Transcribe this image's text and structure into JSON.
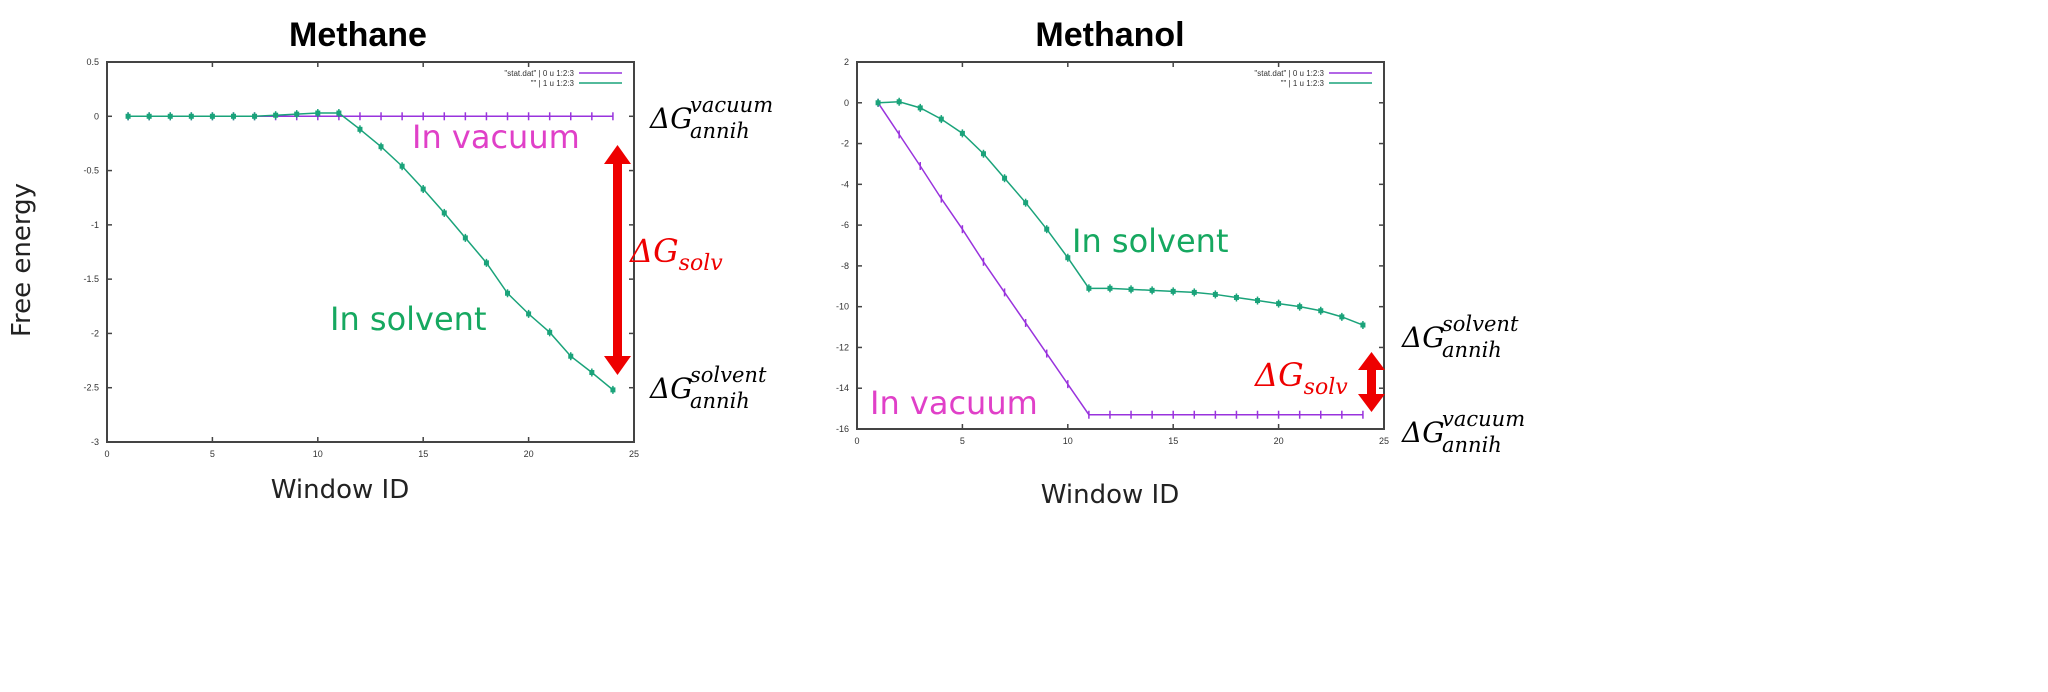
{
  "ylabel": "Free energy",
  "chart_data": [
    {
      "type": "line",
      "title": "Methane",
      "xlabel": "Window ID",
      "ylabel": "Free energy",
      "xlim": [
        0,
        25
      ],
      "ylim": [
        -3,
        0.5
      ],
      "xticks": [
        "0",
        "5",
        "10",
        "15",
        "20",
        "25"
      ],
      "yticks": [
        "0.5",
        "0",
        "-0.5",
        "-1",
        "-1.5",
        "-2",
        "-2.5",
        "-3"
      ],
      "x": [
        1,
        2,
        3,
        4,
        5,
        6,
        7,
        8,
        9,
        10,
        11,
        12,
        13,
        14,
        15,
        16,
        17,
        18,
        19,
        20,
        21,
        22,
        23,
        24
      ],
      "legend": [
        "\"stat.dat\" | 0 u 1:2:3",
        "\"\" | 1 u 1:2:3"
      ],
      "series": [
        {
          "name": "In vacuum",
          "color": "#9933dd",
          "values": [
            0,
            0,
            0,
            0,
            0,
            0,
            0,
            0,
            0,
            0,
            0,
            0,
            0,
            0,
            0,
            0,
            0,
            0,
            0,
            0,
            0,
            0,
            0,
            0
          ]
        },
        {
          "name": "In solvent",
          "color": "#1aa37a",
          "values": [
            0,
            0,
            0,
            0,
            0,
            0,
            0,
            0.01,
            0.02,
            0.03,
            0.03,
            -0.12,
            -0.28,
            -0.46,
            -0.67,
            -0.89,
            -1.12,
            -1.35,
            -1.63,
            -1.82,
            -1.99,
            -2.21,
            -2.36,
            -2.52
          ]
        }
      ],
      "annotations": {
        "vacuum_label": "In vacuum",
        "solvent_label": "In solvent",
        "dg_solv": {
          "base": "ΔG",
          "sub": "solv"
        },
        "dg_vacuum": {
          "base": "ΔG",
          "sup": "vacuum",
          "sub": "annih"
        },
        "dg_solvent": {
          "base": "ΔG",
          "sup": "solvent",
          "sub": "annih"
        }
      }
    },
    {
      "type": "line",
      "title": "Methanol",
      "xlabel": "Window ID",
      "ylabel": "Free energy",
      "xlim": [
        0,
        25
      ],
      "ylim": [
        -16,
        2
      ],
      "xticks": [
        "0",
        "5",
        "10",
        "15",
        "20",
        "25"
      ],
      "yticks": [
        "2",
        "0",
        "-2",
        "-4",
        "-6",
        "-8",
        "-10",
        "-12",
        "-14",
        "-16"
      ],
      "x": [
        1,
        2,
        3,
        4,
        5,
        6,
        7,
        8,
        9,
        10,
        11,
        12,
        13,
        14,
        15,
        16,
        17,
        18,
        19,
        20,
        21,
        22,
        23,
        24
      ],
      "legend": [
        "\"stat.dat\" | 0 u 1:2:3",
        "\"\" | 1 u 1:2:3"
      ],
      "series": [
        {
          "name": "In vacuum",
          "color": "#9933dd",
          "values": [
            0,
            -1.55,
            -3.1,
            -4.7,
            -6.2,
            -7.8,
            -9.3,
            -10.8,
            -12.3,
            -13.8,
            -15.3,
            -15.3,
            -15.3,
            -15.3,
            -15.3,
            -15.3,
            -15.3,
            -15.3,
            -15.3,
            -15.3,
            -15.3,
            -15.3,
            -15.3,
            -15.3
          ]
        },
        {
          "name": "In solvent",
          "color": "#1aa37a",
          "values": [
            0,
            0.05,
            -0.25,
            -0.8,
            -1.5,
            -2.5,
            -3.7,
            -4.9,
            -6.2,
            -7.6,
            -9.1,
            -9.1,
            -9.15,
            -9.2,
            -9.25,
            -9.3,
            -9.4,
            -9.55,
            -9.7,
            -9.85,
            -10.0,
            -10.2,
            -10.5,
            -10.9
          ]
        }
      ],
      "annotations": {
        "vacuum_label": "In vacuum",
        "solvent_label": "In solvent",
        "dg_solv": {
          "base": "ΔG",
          "sub": "solv"
        },
        "dg_vacuum": {
          "base": "ΔG",
          "sup": "vacuum",
          "sub": "annih"
        },
        "dg_solvent": {
          "base": "ΔG",
          "sup": "solvent",
          "sub": "annih"
        }
      }
    }
  ]
}
